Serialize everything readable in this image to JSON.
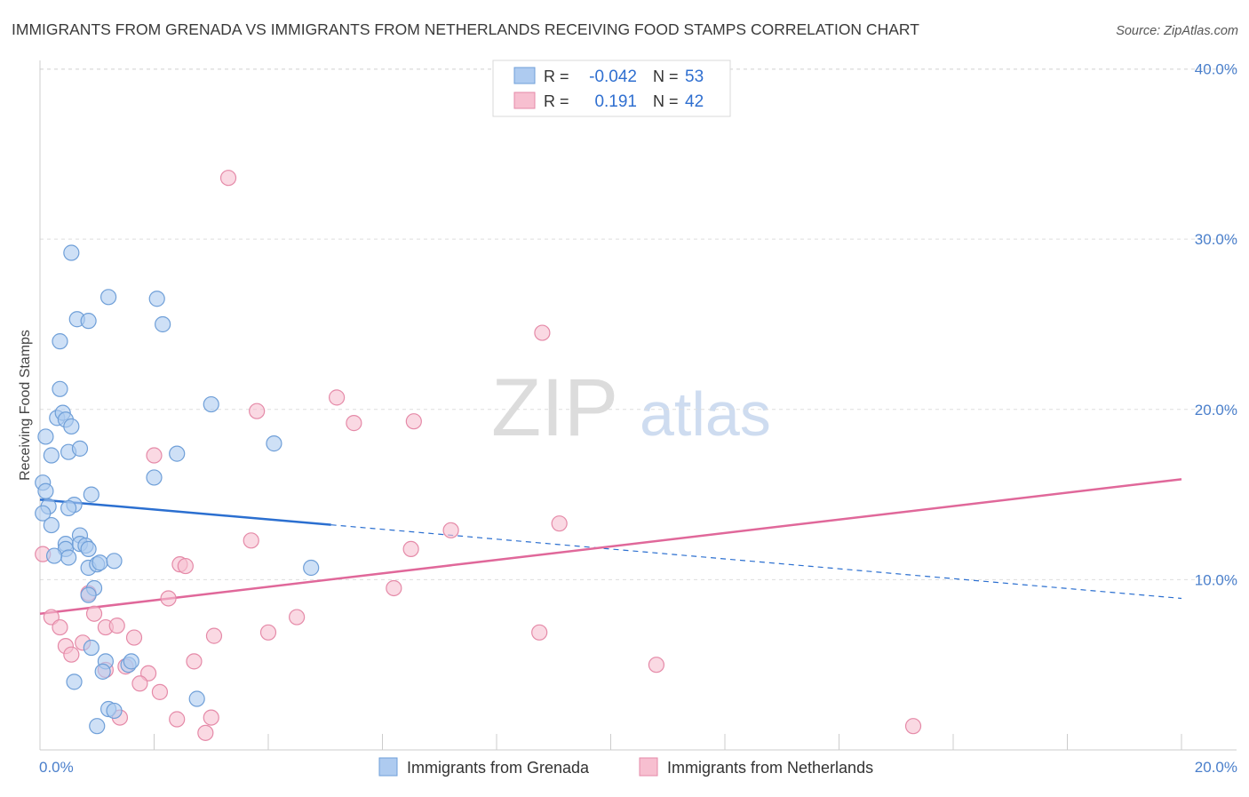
{
  "title": "IMMIGRANTS FROM GRENADA VS IMMIGRANTS FROM NETHERLANDS RECEIVING FOOD STAMPS CORRELATION CHART",
  "source": "Source: ZipAtlas.com",
  "watermark": {
    "zip": "ZIP",
    "atlas": "atlas"
  },
  "colors": {
    "grenada_fill": "#aecbf0",
    "grenada_stroke": "#6f9fd8",
    "grenada_line": "#2b6fd0",
    "netherlands_fill": "#f7bfd0",
    "netherlands_stroke": "#e58aa8",
    "netherlands_line": "#e0689a",
    "tick_label": "#4a7fcb",
    "grid": "#dddddd",
    "title": "#3a3a3a"
  },
  "stats": {
    "r_label": "R =",
    "n_label": "N =",
    "rows": [
      {
        "r": "-0.042",
        "n": "53"
      },
      {
        "r": "0.191",
        "n": "42"
      }
    ]
  },
  "chart_data": {
    "type": "scatter",
    "title": "IMMIGRANTS FROM GRENADA VS IMMIGRANTS FROM NETHERLANDS RECEIVING FOOD STAMPS CORRELATION CHART",
    "xlabel": "",
    "ylabel": "Receiving Food Stamps",
    "xlim": [
      0,
      20
    ],
    "ylim": [
      0,
      40.5
    ],
    "x_tick_labels": [
      "0.0%",
      "20.0%"
    ],
    "y_ticks": [
      10,
      20,
      30,
      40
    ],
    "y_tick_labels": [
      "10.0%",
      "20.0%",
      "30.0%",
      "40.0%"
    ],
    "grid": true,
    "legend_position": "bottom-center",
    "series": [
      {
        "name": "Immigrants from Grenada",
        "trend": {
          "x0": 0,
          "y0": 14.7,
          "x1": 20,
          "y1": 8.9,
          "solid_until": 5.1
        },
        "points": [
          [
            0.05,
            15.7
          ],
          [
            0.1,
            15.2
          ],
          [
            0.15,
            14.3
          ],
          [
            0.05,
            13.9
          ],
          [
            0.1,
            18.4
          ],
          [
            0.2,
            17.3
          ],
          [
            0.3,
            19.5
          ],
          [
            0.4,
            19.8
          ],
          [
            0.45,
            19.4
          ],
          [
            0.5,
            17.5
          ],
          [
            0.55,
            19.0
          ],
          [
            0.7,
            17.7
          ],
          [
            0.35,
            24.0
          ],
          [
            0.35,
            21.2
          ],
          [
            0.65,
            25.3
          ],
          [
            0.85,
            25.2
          ],
          [
            0.55,
            29.2
          ],
          [
            1.2,
            26.6
          ],
          [
            2.05,
            26.5
          ],
          [
            2.15,
            25.0
          ],
          [
            2.0,
            16.0
          ],
          [
            2.4,
            17.4
          ],
          [
            3.0,
            20.3
          ],
          [
            4.1,
            18.0
          ],
          [
            0.2,
            13.2
          ],
          [
            0.45,
            12.1
          ],
          [
            0.45,
            11.8
          ],
          [
            0.5,
            11.3
          ],
          [
            0.25,
            11.4
          ],
          [
            0.7,
            12.6
          ],
          [
            0.7,
            12.1
          ],
          [
            0.8,
            12.0
          ],
          [
            0.85,
            11.8
          ],
          [
            0.9,
            15.0
          ],
          [
            0.6,
            14.4
          ],
          [
            0.5,
            14.2
          ],
          [
            0.85,
            10.7
          ],
          [
            1.0,
            10.9
          ],
          [
            1.05,
            11.0
          ],
          [
            1.3,
            11.1
          ],
          [
            0.95,
            9.5
          ],
          [
            0.85,
            9.1
          ],
          [
            0.9,
            6.0
          ],
          [
            1.15,
            5.2
          ],
          [
            0.6,
            4.0
          ],
          [
            1.1,
            4.6
          ],
          [
            1.2,
            2.4
          ],
          [
            1.3,
            2.3
          ],
          [
            1.0,
            1.4
          ],
          [
            1.55,
            5.0
          ],
          [
            2.75,
            3.0
          ],
          [
            4.75,
            10.7
          ],
          [
            1.6,
            5.2
          ]
        ]
      },
      {
        "name": "Immigrants from Netherlands",
        "trend": {
          "x0": 0,
          "y0": 8.0,
          "x1": 20,
          "y1": 15.9
        },
        "points": [
          [
            3.3,
            33.6
          ],
          [
            3.8,
            19.9
          ],
          [
            5.2,
            20.7
          ],
          [
            5.5,
            19.2
          ],
          [
            6.55,
            19.3
          ],
          [
            8.8,
            24.5
          ],
          [
            2.0,
            17.3
          ],
          [
            9.1,
            13.3
          ],
          [
            7.2,
            12.9
          ],
          [
            3.7,
            12.3
          ],
          [
            6.5,
            11.8
          ],
          [
            2.45,
            10.9
          ],
          [
            2.55,
            10.8
          ],
          [
            6.2,
            9.5
          ],
          [
            2.25,
            8.9
          ],
          [
            4.5,
            7.8
          ],
          [
            0.2,
            7.8
          ],
          [
            0.95,
            8.0
          ],
          [
            0.35,
            7.2
          ],
          [
            1.15,
            7.2
          ],
          [
            1.35,
            7.3
          ],
          [
            1.65,
            6.6
          ],
          [
            3.05,
            6.7
          ],
          [
            4.0,
            6.9
          ],
          [
            8.75,
            6.9
          ],
          [
            0.45,
            6.1
          ],
          [
            0.75,
            6.3
          ],
          [
            0.55,
            5.6
          ],
          [
            2.7,
            5.2
          ],
          [
            1.5,
            4.9
          ],
          [
            1.9,
            4.5
          ],
          [
            1.75,
            3.9
          ],
          [
            1.15,
            4.7
          ],
          [
            2.1,
            3.4
          ],
          [
            1.4,
            1.9
          ],
          [
            2.4,
            1.8
          ],
          [
            3.0,
            1.9
          ],
          [
            2.9,
            1.0
          ],
          [
            10.8,
            5.0
          ],
          [
            15.3,
            1.4
          ],
          [
            0.05,
            11.5
          ],
          [
            0.85,
            9.2
          ]
        ]
      }
    ]
  }
}
